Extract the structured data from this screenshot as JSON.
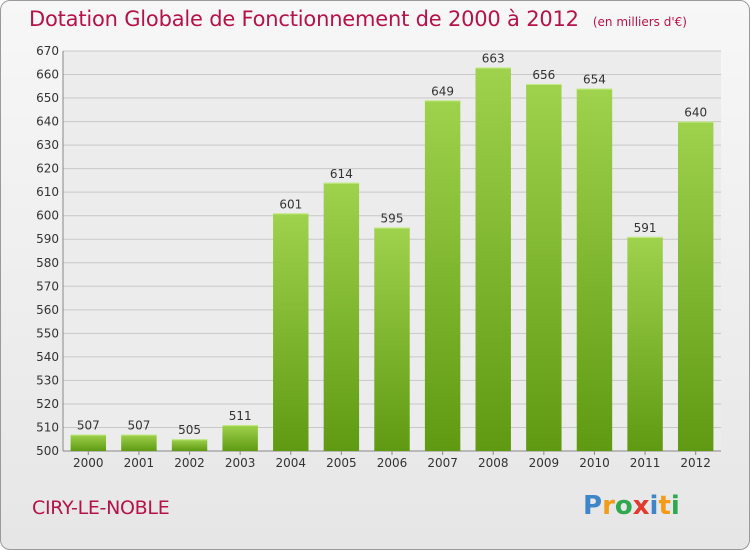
{
  "header": {
    "title": "Dotation Globale de Fonctionnement de 2000 à 2012",
    "unit_note": "(en milliers d'€)"
  },
  "footer": {
    "commune": "CIRY-LE-NOBLE",
    "logo_letters": [
      "P",
      "r",
      "o",
      "x",
      "i",
      "t",
      "i"
    ],
    "logo_colors": [
      "#3f86c9",
      "#f39c1a",
      "#2fa84f",
      "#e23b2e",
      "#3f86c9",
      "#f39c1a",
      "#2fa84f"
    ]
  },
  "colors": {
    "title": "#b5124a",
    "bar_top": "#9fd24d",
    "bar_bottom": "#5f9a12",
    "grid": "#c8c8c8",
    "axis_text": "#333333"
  },
  "chart_data": {
    "type": "bar",
    "categories": [
      "2000",
      "2001",
      "2002",
      "2003",
      "2004",
      "2005",
      "2006",
      "2007",
      "2008",
      "2009",
      "2010",
      "2011",
      "2012"
    ],
    "values": [
      507,
      507,
      505,
      511,
      601,
      614,
      595,
      649,
      663,
      656,
      654,
      591,
      640
    ],
    "ylim": [
      500,
      670
    ],
    "yticks": [
      500,
      510,
      520,
      530,
      540,
      550,
      560,
      570,
      580,
      590,
      600,
      610,
      620,
      630,
      640,
      650,
      660,
      670
    ],
    "grid": true,
    "data_labels": true
  }
}
